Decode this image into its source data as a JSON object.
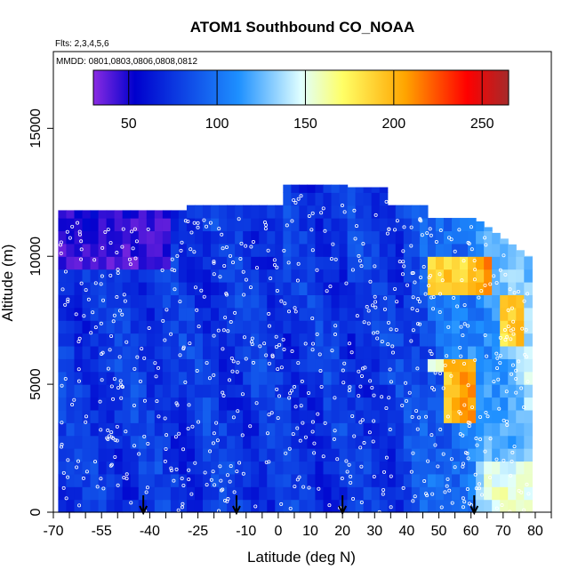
{
  "chart_data": {
    "type": "heatmap",
    "title": "ATOM1 Southbound CO_NOAA",
    "flights_note": "Flts: 2,3,4,5,6",
    "dates_note": "MMDD: 0801,0803,0806,0808,0812",
    "xlabel": "Latitude (deg N)",
    "ylabel": "Altitude (m)",
    "xlim": [
      -70,
      85
    ],
    "ylim": [
      0,
      18000
    ],
    "x_ticks": [
      -70,
      -55,
      -40,
      -25,
      -10,
      0,
      10,
      20,
      30,
      40,
      50,
      60,
      70,
      80
    ],
    "x_ticks_labeled": [
      "-70",
      "-55",
      "-40",
      "-25",
      "-10",
      "0",
      "10",
      "20",
      "30",
      "40",
      "50",
      "60",
      "70",
      "80"
    ],
    "y_ticks": [
      "0",
      "5000",
      "10000",
      "15000"
    ],
    "colorbar": {
      "range": [
        30,
        265
      ],
      "tick_values": [
        50,
        100,
        150,
        200,
        250
      ],
      "tick_labels": [
        "50",
        "100",
        "150",
        "200",
        "250"
      ],
      "colors": [
        "#8a2be2",
        "#0000cd",
        "#1e90ff",
        "#e0ffff",
        "#ffff66",
        "#ffa500",
        "#ff0000",
        "#a52a2a"
      ]
    },
    "arrow_latitudes": [
      -42,
      -13,
      20,
      61
    ],
    "grid": false,
    "legend": "colorbar top"
  }
}
